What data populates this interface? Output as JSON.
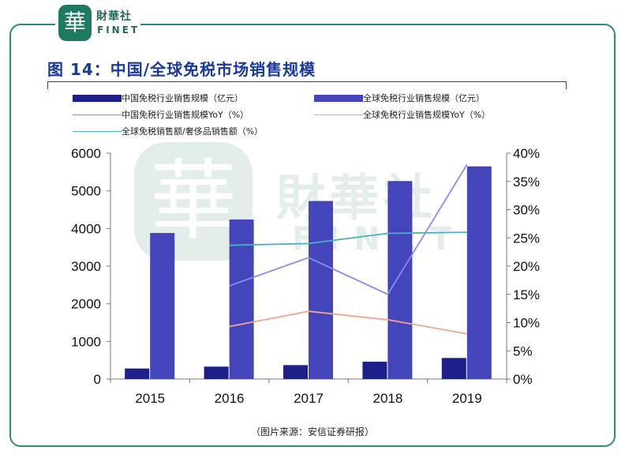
{
  "logo": {
    "seal_char": "華",
    "name_cn": "財華社",
    "name_en": "FINET"
  },
  "watermark": {
    "seal_char": "華",
    "name_cn": "財華社",
    "name_en": "FINET"
  },
  "title": "图 14：中国/全球免税市场销售规模",
  "source": "（图片来源：安信证券研报）",
  "colors": {
    "frame": "#2a8c7c",
    "china_bar": "#1c1f8a",
    "global_bar": "#4444bb",
    "china_yoy": "#8a8af0",
    "global_yoy": "#f0a68e",
    "ratio": "#4ab0c0"
  },
  "chart_data": {
    "type": "bar",
    "categories": [
      "2015",
      "2016",
      "2017",
      "2018",
      "2019"
    ],
    "y_left": {
      "min": 0,
      "max": 6000,
      "ticks": [
        "0",
        "1000",
        "2000",
        "3000",
        "4000",
        "5000",
        "6000"
      ]
    },
    "y_right": {
      "min": 0,
      "max": 40,
      "ticks": [
        "0%",
        "5%",
        "10%",
        "15%",
        "20%",
        "25%",
        "30%",
        "35%",
        "40%"
      ]
    },
    "bar_series": [
      {
        "name": "中国免税行业销售规模（亿元）",
        "values": [
          280,
          330,
          370,
          460,
          560
        ]
      },
      {
        "name": "全球免税行业销售规模（亿元）",
        "values": [
          3880,
          4240,
          4730,
          5260,
          5650
        ]
      }
    ],
    "line_series": [
      {
        "name": "中国免税行业销售规模YoY（%）",
        "axis": "right",
        "values": [
          null,
          16.5,
          21.5,
          15.0,
          38.0
        ]
      },
      {
        "name": "全球免税行业销售规模YoY（%）",
        "axis": "right",
        "values": [
          null,
          9.3,
          12.0,
          10.5,
          8.0
        ]
      },
      {
        "name": "全球免税销售额/奢侈品销售额（%）",
        "axis": "right",
        "values": [
          null,
          23.7,
          24.0,
          25.8,
          26.0
        ]
      }
    ],
    "grid": false
  }
}
